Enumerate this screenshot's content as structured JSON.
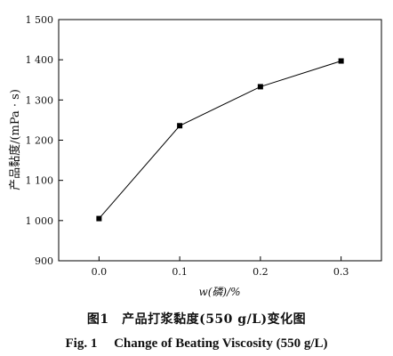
{
  "chart_data": {
    "type": "line",
    "x": [
      0.0,
      0.1,
      0.2,
      0.3
    ],
    "x_tick_labels": [
      "0.0",
      "0.1",
      "0.2",
      "0.3"
    ],
    "xlim": [
      -0.05,
      0.35
    ],
    "xlabel": "w(磷)/%",
    "ylabel": "产品黏度/(mPa · s)",
    "ylim": [
      900,
      1500
    ],
    "y_ticks": [
      900,
      1000,
      1100,
      1200,
      1300,
      1400,
      1500
    ],
    "y_tick_labels": [
      "900",
      "1 000",
      "1 100",
      "1 200",
      "1 300",
      "1 400",
      "1 500"
    ],
    "series": [
      {
        "values": [
          1005,
          1236,
          1333,
          1397
        ]
      }
    ],
    "grid": false,
    "marker": "square",
    "line_color": "#000000"
  },
  "caption": {
    "cn": "图1　产品打浆黏度(550 g/L)变化图",
    "en": "Fig. 1　 Change of Beating Viscosity (550 g/L)"
  }
}
